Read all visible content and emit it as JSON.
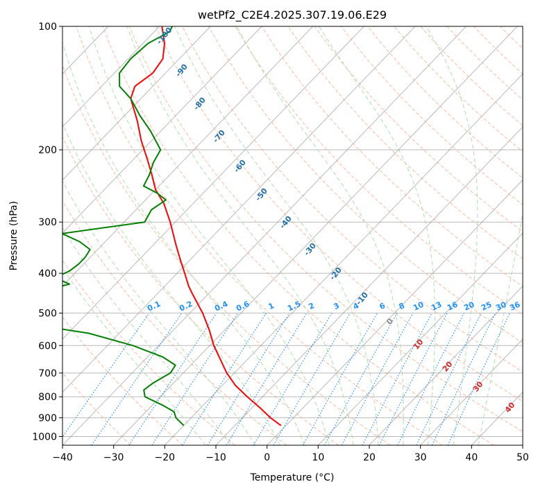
{
  "chart_data": {
    "type": "line",
    "title": "wetPf2_C2E4.2025.307.19.06.E29",
    "xlabel": "Temperature (°C)",
    "ylabel": "Pressure (hPa)",
    "xlim": [
      -40,
      50
    ],
    "ylim": [
      1050,
      100
    ],
    "y_scale": "log",
    "grid": true,
    "x_ticks": [
      -40,
      -30,
      -20,
      -10,
      0,
      10,
      20,
      30,
      40,
      50
    ],
    "y_ticks": [
      100,
      200,
      300,
      400,
      500,
      600,
      700,
      800,
      900,
      1000
    ],
    "colors": {
      "temperature": "#ff0000",
      "dewpoint": "#008000",
      "isotherms": "#7f7f7f",
      "dry_adiabats": "#f4a582",
      "moist_adiabats": "#a6d9a6",
      "mixing_ratio": "#1e90ff",
      "dry_adiabat_labels": "#1f6fa8",
      "moist_adiabat_labels": "#d62728",
      "mixing_ratio_labels": "#1e90ff"
    },
    "dry_adiabat_labels": [
      "-100",
      "-90",
      "-80",
      "-70",
      "-60",
      "-50",
      "-40",
      "-30",
      "-20",
      "-10",
      "0",
      "10",
      "20",
      "30",
      "40"
    ],
    "mixing_ratio_labels": [
      "0.1",
      "0.2",
      "0.4",
      "0.6",
      "1",
      "1.5",
      "2",
      "3",
      "4",
      "6",
      "8",
      "10",
      "13",
      "16",
      "20",
      "25",
      "30",
      "36"
    ],
    "mixing_ratio_values": [
      0.1,
      0.2,
      0.4,
      0.6,
      1,
      1.5,
      2,
      3,
      4,
      6,
      8,
      10,
      13,
      16,
      20,
      25,
      30,
      36
    ],
    "series": [
      {
        "name": "temperature",
        "pressure": [
          940,
          900,
          850,
          800,
          750,
          700,
          650,
          600,
          550,
          500,
          450,
          430,
          400,
          370,
          340,
          300,
          270,
          250,
          230,
          210,
          190,
          170,
          150,
          140,
          130,
          120,
          110,
          100
        ],
        "temperature": [
          -1,
          -4.5,
          -8.5,
          -13,
          -17.5,
          -21.5,
          -25.2,
          -29.2,
          -33,
          -37.5,
          -43,
          -45.3,
          -48.5,
          -52,
          -55.7,
          -61,
          -65.8,
          -70,
          -73.5,
          -77.5,
          -82,
          -86.5,
          -92,
          -93.5,
          -92.5,
          -93.2,
          -95.8,
          -99.5
        ]
      },
      {
        "name": "dewpoint",
        "pressure": [
          940,
          900,
          870,
          840,
          800,
          770,
          740,
          700,
          670,
          640,
          600,
          560,
          530,
          510,
          500,
          485,
          470,
          455,
          440,
          425,
          410,
          395,
          380,
          365,
          350,
          335,
          320,
          300,
          280,
          265,
          255,
          245,
          230,
          215,
          200,
          180,
          165,
          150,
          140,
          130,
          120,
          110,
          103,
          100
        ],
        "temperature": [
          -20,
          -23,
          -24.5,
          -27.8,
          -33,
          -34.5,
          -34,
          -32.5,
          -33,
          -37,
          -45,
          -56,
          -70,
          -77,
          -80,
          -74,
          -74.3,
          -76,
          -72.5,
          -69,
          -73,
          -71.5,
          -71,
          -71,
          -71.5,
          -75,
          -80,
          -66,
          -67,
          -66,
          -69,
          -73,
          -74,
          -75.5,
          -76.5,
          -82,
          -87,
          -92,
          -96.5,
          -99,
          -99.5,
          -99,
          -97,
          -97.5
        ]
      }
    ]
  }
}
